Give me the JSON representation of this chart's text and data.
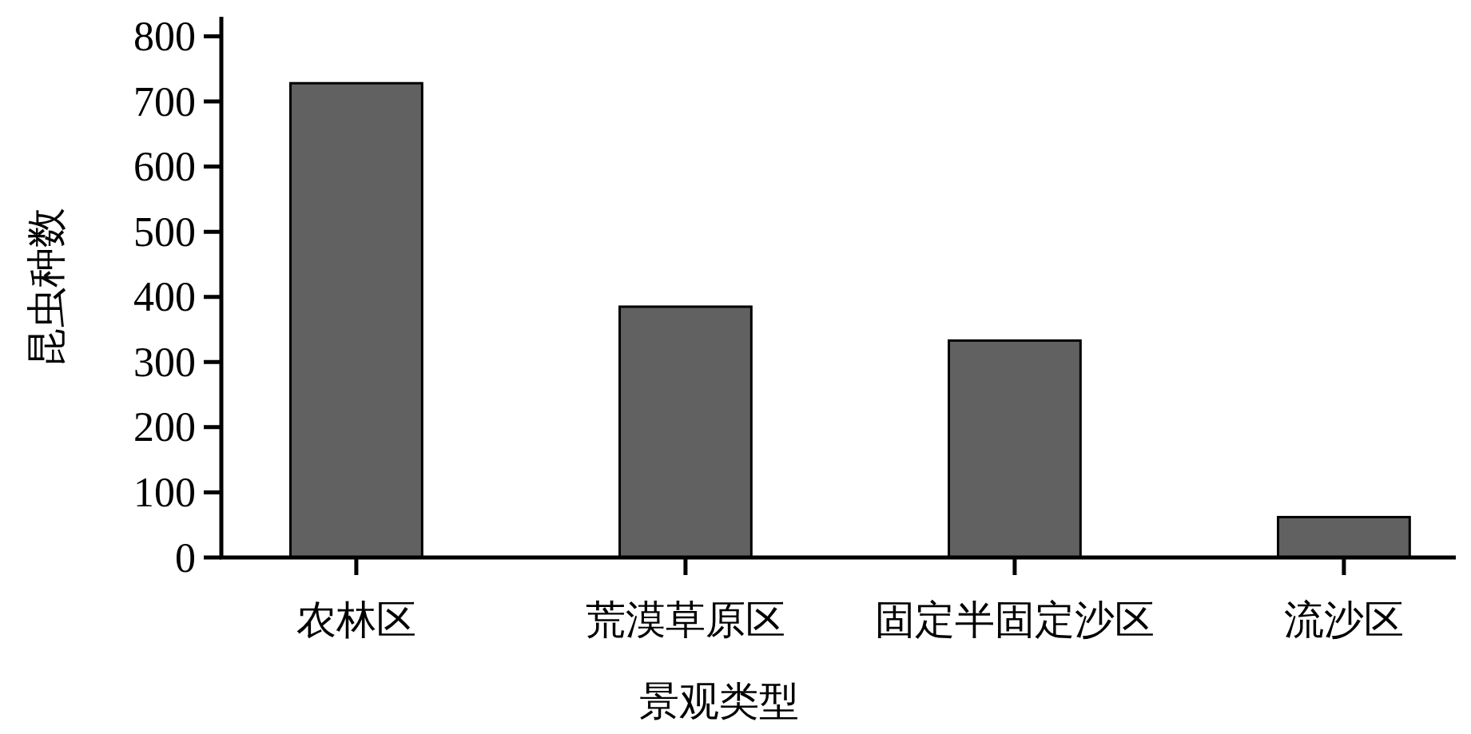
{
  "chart_data": {
    "type": "bar",
    "xlabel": "景观类型",
    "ylabel": "昆虫种数",
    "categories": [
      "农林区",
      "荒漠草原区",
      "固定半固定沙区",
      "流沙区"
    ],
    "values": [
      728,
      385,
      333,
      62
    ],
    "color": "#616161",
    "ylim": [
      0,
      830
    ],
    "yticks": [
      0,
      100,
      200,
      300,
      400,
      500,
      600,
      700,
      800
    ],
    "grid": false
  }
}
